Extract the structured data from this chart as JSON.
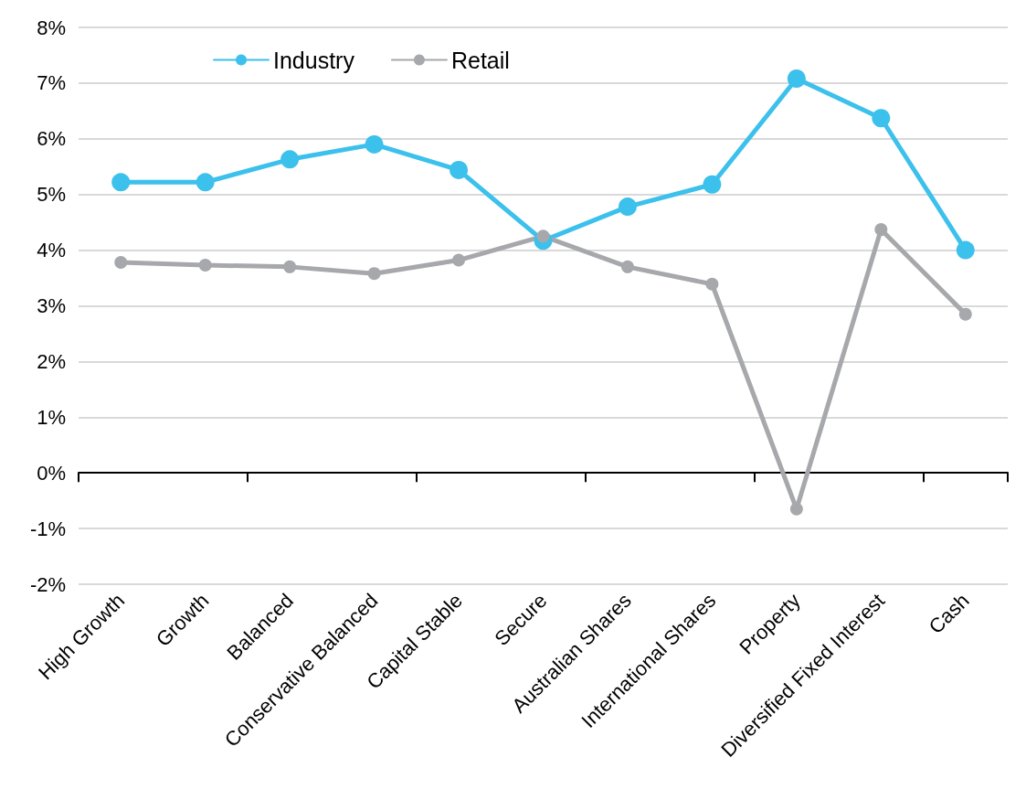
{
  "chart_data": {
    "type": "line",
    "categories": [
      "High Growth",
      "Growth",
      "Balanced",
      "Conservative Balanced",
      "Capital Stable",
      "Secure",
      "Australian Shares",
      "International Shares",
      "Property",
      "Diversified Fixed Interest",
      "Cash"
    ],
    "series": [
      {
        "name": "Industry",
        "color": "#3cc0ec",
        "values": [
          5.22,
          5.22,
          5.63,
          5.9,
          5.44,
          4.17,
          4.78,
          5.18,
          7.08,
          6.37,
          4.0
        ]
      },
      {
        "name": "Retail",
        "color": "#a7a8ac",
        "values": [
          3.78,
          3.73,
          3.7,
          3.58,
          3.82,
          4.25,
          3.7,
          3.39,
          -0.65,
          4.37,
          2.85
        ]
      }
    ],
    "ylim": [
      -2,
      8
    ],
    "yticks": [
      {
        "value": -2,
        "label": "-2%"
      },
      {
        "value": -1,
        "label": "-1%"
      },
      {
        "value": 0,
        "label": "0%"
      },
      {
        "value": 1,
        "label": "1%"
      },
      {
        "value": 2,
        "label": "2%"
      },
      {
        "value": 3,
        "label": "3%"
      },
      {
        "value": 4,
        "label": "4%"
      },
      {
        "value": 5,
        "label": "5%"
      },
      {
        "value": 6,
        "label": "6%"
      },
      {
        "value": 7,
        "label": "7%"
      },
      {
        "value": 8,
        "label": "8%"
      }
    ],
    "grid": "y",
    "legend": "top",
    "marker": "circle",
    "line_style": "solid"
  }
}
